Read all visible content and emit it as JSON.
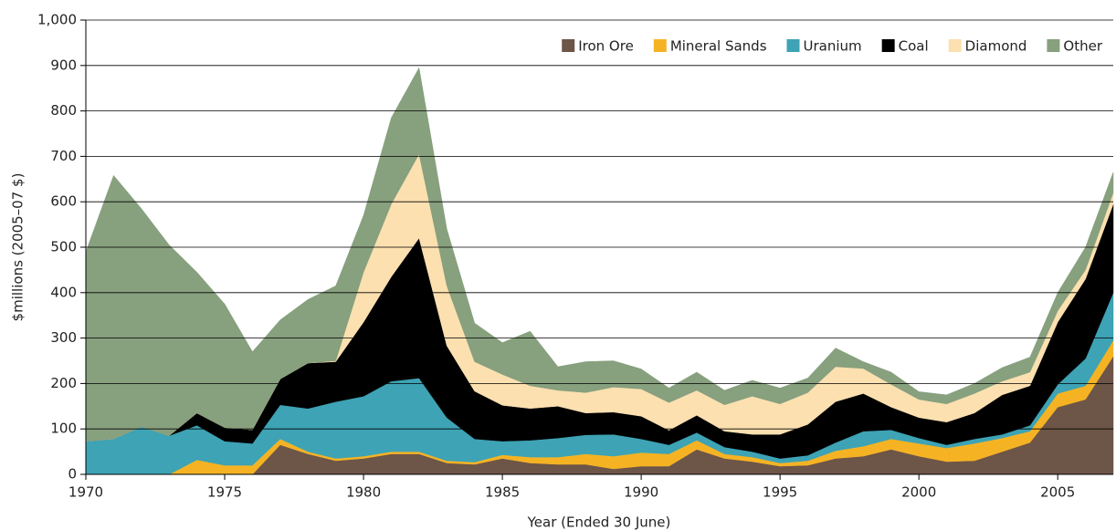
{
  "chart_data": {
    "type": "stacked_area",
    "x_label": "Year (Ended 30 June)",
    "y_label": "$millions (2005–07 $)",
    "x": [
      1970,
      1971,
      1972,
      1973,
      1974,
      1975,
      1976,
      1977,
      1978,
      1979,
      1980,
      1981,
      1982,
      1983,
      1984,
      1985,
      1986,
      1987,
      1988,
      1989,
      1990,
      1991,
      1992,
      1993,
      1994,
      1995,
      1996,
      1997,
      1998,
      1999,
      2000,
      2001,
      2002,
      2003,
      2004,
      2005,
      2006,
      2007
    ],
    "series": [
      {
        "name": "Iron Ore",
        "color": "#6d5547",
        "values": [
          0,
          0,
          0,
          0,
          0,
          0,
          0,
          65,
          45,
          30,
          35,
          45,
          45,
          25,
          22,
          35,
          25,
          22,
          22,
          12,
          18,
          18,
          55,
          35,
          28,
          18,
          20,
          35,
          40,
          55,
          40,
          28,
          30,
          50,
          70,
          148,
          165,
          260
        ]
      },
      {
        "name": "Mineral Sands",
        "color": "#f5b324",
        "values": [
          0,
          0,
          0,
          0,
          32,
          20,
          20,
          13,
          5,
          5,
          5,
          5,
          5,
          5,
          5,
          8,
          13,
          16,
          23,
          28,
          30,
          27,
          20,
          10,
          10,
          7,
          10,
          17,
          22,
          23,
          28,
          30,
          38,
          30,
          25,
          30,
          30,
          35
        ]
      },
      {
        "name": "Uranium",
        "color": "#3da3b5",
        "values": [
          73,
          78,
          105,
          85,
          76,
          53,
          48,
          75,
          95,
          125,
          132,
          155,
          162,
          95,
          51,
          30,
          37,
          42,
          42,
          48,
          30,
          20,
          17,
          15,
          12,
          10,
          12,
          18,
          33,
          20,
          12,
          7,
          10,
          8,
          13,
          20,
          60,
          105
        ]
      },
      {
        "name": "Coal",
        "color": "#000000",
        "values": [
          0,
          0,
          0,
          0,
          27,
          30,
          30,
          57,
          100,
          88,
          163,
          230,
          308,
          158,
          105,
          79,
          70,
          70,
          48,
          49,
          50,
          32,
          38,
          35,
          38,
          53,
          68,
          90,
          83,
          50,
          45,
          50,
          57,
          87,
          87,
          137,
          175,
          195
        ]
      },
      {
        "name": "Diamond",
        "color": "#fce0b0",
        "values": [
          0,
          0,
          0,
          0,
          0,
          0,
          0,
          0,
          0,
          2,
          110,
          160,
          185,
          132,
          65,
          68,
          50,
          35,
          45,
          55,
          60,
          61,
          55,
          58,
          84,
          67,
          70,
          77,
          55,
          50,
          40,
          40,
          43,
          30,
          30,
          25,
          20,
          25
        ]
      },
      {
        "name": "Other",
        "color": "#87a07e",
        "values": [
          417,
          580,
          480,
          420,
          310,
          272,
          172,
          130,
          140,
          165,
          125,
          190,
          190,
          125,
          85,
          70,
          120,
          52,
          68,
          58,
          44,
          32,
          40,
          32,
          35,
          35,
          32,
          41,
          15,
          27,
          17,
          20,
          22,
          30,
          33,
          40,
          50,
          45
        ]
      }
    ],
    "xlim": [
      1970,
      2007
    ],
    "xticks": [
      1970,
      1975,
      1980,
      1985,
      1990,
      1995,
      2000,
      2005
    ],
    "ylim": [
      0,
      1000
    ],
    "yticks": [
      0,
      100,
      200,
      300,
      400,
      500,
      600,
      700,
      800,
      900,
      {
        "value": 1000,
        "label": "1,000"
      }
    ],
    "grid": true,
    "legend": "top-right"
  }
}
